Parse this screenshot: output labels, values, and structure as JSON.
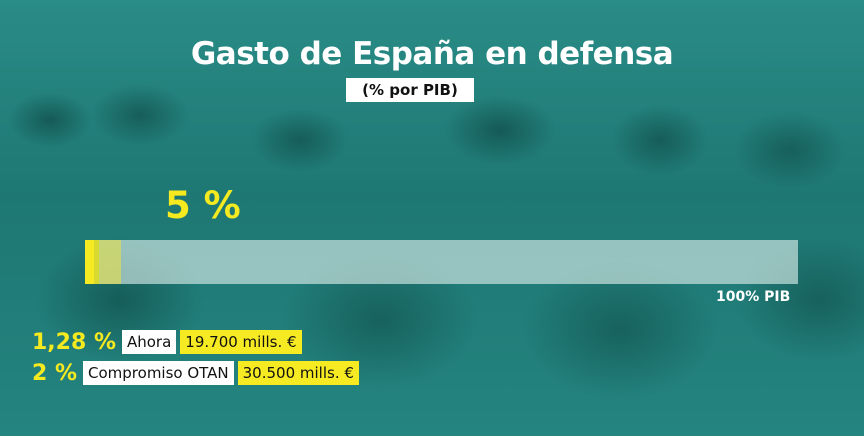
{
  "header": {
    "title": "Gasto de España en defensa",
    "subtitle": "(% por PIB)"
  },
  "highlight": {
    "value_label": "5 %"
  },
  "bar": {
    "scale_label": "100% PIB"
  },
  "legend": [
    {
      "pct": "1,28 %",
      "label": "Ahora",
      "amount": "19.700 mills. €"
    },
    {
      "pct": "2 %",
      "label": "Compromiso OTAN",
      "amount": "30.500 mills. €"
    }
  ],
  "colors": {
    "accent": "#f6ea22",
    "background": "#1f7f7b"
  },
  "chart_data": {
    "type": "bar",
    "orientation": "horizontal",
    "title": "Gasto de España en defensa",
    "subtitle": "(% por PIB)",
    "xlim": [
      0,
      100
    ],
    "series": [
      {
        "name": "Ahora",
        "values": [
          1.28
        ]
      },
      {
        "name": "Compromiso OTAN",
        "values": [
          2
        ]
      },
      {
        "values": [
          5
        ]
      }
    ]
  }
}
